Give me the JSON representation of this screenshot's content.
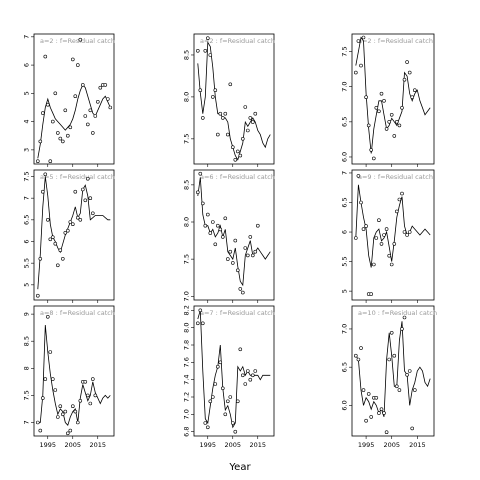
{
  "chart_data": {
    "type": "line",
    "xlabel": "Year",
    "x": [
      1991,
      1992,
      1993,
      1994,
      1995,
      1996,
      1997,
      1998,
      1999,
      2000,
      2001,
      2002,
      2003,
      2004,
      2005,
      2006,
      2007,
      2008,
      2009,
      2010,
      2011,
      2012,
      2013,
      2014,
      2015,
      2016,
      2017,
      2018,
      2019,
      2020
    ],
    "panels": [
      {
        "label": "a=2  :  f=Residual catch",
        "ylim": [
          2.5,
          7.1
        ],
        "yticks": [
          3,
          4,
          5,
          6,
          7
        ],
        "points": [
          2.6,
          3.3,
          4.3,
          6.3,
          4.6,
          2.6,
          4.0,
          5.0,
          3.6,
          3.4,
          3.3,
          4.4,
          3.5,
          3.8,
          6.2,
          4.9,
          6.0,
          6.9,
          5.3,
          4.2,
          3.9,
          4.4,
          3.6,
          4.2,
          4.7,
          5.2,
          5.3,
          5.3,
          4.8,
          4.5
        ],
        "fit": [
          2.7,
          3.2,
          3.9,
          4.5,
          4.8,
          4.5,
          4.3,
          4.1,
          4.0,
          3.9,
          3.8,
          3.7,
          3.8,
          3.9,
          4.1,
          4.4,
          4.8,
          5.1,
          5.3,
          5.2,
          4.9,
          4.6,
          4.3,
          4.2,
          4.4,
          4.6,
          4.8,
          4.9,
          4.7,
          4.5
        ]
      },
      {
        "label": "a=2  :  f=Residual catch",
        "ylim": [
          7.2,
          8.75
        ],
        "yticks": [
          7.5,
          8.0,
          8.5
        ],
        "points": [
          8.55,
          8.08,
          7.75,
          8.55,
          8.7,
          8.5,
          8.0,
          8.08,
          7.55,
          7.8,
          7.75,
          7.8,
          7.55,
          8.15,
          7.4,
          7.25,
          7.35,
          7.3,
          7.5,
          7.88,
          7.6,
          7.75,
          7.7,
          7.8,
          7.6,
          7.5,
          7.4,
          7.3,
          7.5,
          7.6
        ],
        "fit": [
          8.4,
          8.05,
          7.8,
          8.0,
          8.65,
          8.6,
          8.35,
          8.0,
          7.8,
          7.8,
          7.75,
          7.75,
          7.7,
          7.5,
          7.4,
          7.3,
          7.25,
          7.35,
          7.45,
          7.7,
          7.65,
          7.7,
          7.75,
          7.7,
          7.6,
          7.55,
          7.45,
          7.4,
          7.5,
          7.55
        ],
        "lastMarkerIndex": 23
      },
      {
        "label": "a=2  :  f=Residual catch",
        "ylim": [
          5.9,
          7.75
        ],
        "yticks": [
          6.0,
          6.5,
          7.0,
          7.5
        ],
        "points": [
          7.2,
          7.65,
          7.3,
          7.7,
          6.85,
          6.45,
          6.1,
          5.98,
          6.7,
          6.65,
          6.9,
          6.8,
          6.4,
          6.5,
          6.6,
          6.3,
          6.5,
          6.45,
          6.7,
          7.1,
          7.35,
          7.2,
          6.85,
          6.95,
          6.8,
          6.7,
          6.6,
          6.5,
          6.6,
          6.7
        ],
        "fit": [
          7.3,
          7.5,
          7.7,
          7.65,
          6.9,
          6.4,
          6.05,
          6.4,
          6.6,
          6.8,
          6.8,
          6.6,
          6.4,
          6.45,
          6.55,
          6.5,
          6.45,
          6.55,
          6.65,
          7.2,
          7.15,
          6.9,
          6.8,
          6.9,
          6.95,
          6.8,
          6.7,
          6.6,
          6.65,
          6.7
        ],
        "lastMarkerIndex": 23
      },
      {
        "label": "a=5  :  f=Residual catch",
        "ylim": [
          4.65,
          7.65
        ],
        "yticks": [
          5.0,
          5.5,
          6.0,
          6.5,
          7.0,
          7.5
        ],
        "points": [
          4.75,
          5.6,
          7.15,
          7.55,
          6.5,
          6.05,
          6.1,
          5.95,
          5.45,
          5.8,
          5.6,
          6.2,
          6.25,
          6.45,
          6.4,
          7.15,
          6.55,
          6.5,
          7.2,
          6.95,
          7.45,
          7.0,
          6.65,
          6.4,
          6.5,
          6.6,
          6.7,
          6.6,
          6.5,
          6.45
        ],
        "fit": [
          4.9,
          5.7,
          6.8,
          7.5,
          7.05,
          6.4,
          6.1,
          6.0,
          5.85,
          5.75,
          5.95,
          6.15,
          6.3,
          6.45,
          6.6,
          6.8,
          6.55,
          6.65,
          7.2,
          7.3,
          7.05,
          6.5,
          6.55,
          6.6,
          6.6,
          6.6,
          6.6,
          6.55,
          6.5,
          6.5
        ],
        "lastMarkerIndex": 22
      },
      {
        "label": "a=6  :  f=Residual catch",
        "ylim": [
          6.95,
          8.7
        ],
        "yticks": [
          7.0,
          7.5,
          8.0,
          8.5
        ],
        "points": [
          8.4,
          8.65,
          8.25,
          7.95,
          8.1,
          7.85,
          8.0,
          7.7,
          7.95,
          7.9,
          7.8,
          8.05,
          7.5,
          7.6,
          7.45,
          7.75,
          7.35,
          7.1,
          7.05,
          7.65,
          7.55,
          7.8,
          7.55,
          7.6,
          7.95,
          7.7,
          7.6,
          7.5,
          7.55,
          7.6
        ],
        "fit": [
          8.35,
          8.6,
          8.1,
          7.95,
          7.95,
          7.85,
          7.9,
          7.8,
          7.85,
          7.95,
          7.8,
          7.9,
          7.6,
          7.55,
          7.5,
          7.65,
          7.4,
          7.2,
          7.15,
          7.55,
          7.65,
          7.75,
          7.55,
          7.6,
          7.65,
          7.6,
          7.55,
          7.5,
          7.55,
          7.6
        ],
        "lastMarkerIndex": 24
      },
      {
        "label": "a=9  :  f=Residual catch",
        "ylim": [
          4.85,
          7.05
        ],
        "yticks": [
          5.0,
          5.5,
          6.0,
          6.5,
          7.0
        ],
        "points": [
          5.9,
          6.95,
          6.5,
          6.05,
          6.1,
          4.95,
          4.95,
          5.45,
          5.9,
          6.2,
          5.8,
          5.95,
          6.05,
          5.6,
          5.45,
          5.8,
          6.35,
          6.55,
          6.65,
          6.0,
          5.95,
          6.0,
          6.2,
          6.1,
          6.0,
          5.95,
          6.0,
          6.1,
          6.0,
          5.95
        ],
        "fit": [
          5.9,
          6.8,
          6.5,
          6.25,
          6.05,
          5.6,
          5.4,
          5.9,
          6.0,
          6.05,
          5.85,
          5.9,
          6.0,
          5.75,
          5.5,
          5.85,
          6.25,
          6.45,
          6.6,
          6.1,
          5.95,
          6.0,
          6.1,
          6.05,
          6.0,
          5.95,
          6.0,
          6.05,
          6.0,
          5.95
        ],
        "lastMarkerIndex": 21
      },
      {
        "label": "a=8  :  f=Residual catch",
        "ylim": [
          6.75,
          9.15
        ],
        "yticks": [
          7.0,
          7.5,
          8.0,
          8.5,
          9.0
        ],
        "points": [
          7.0,
          6.85,
          7.45,
          7.8,
          8.95,
          8.3,
          7.8,
          7.6,
          7.1,
          7.3,
          7.15,
          7.2,
          6.8,
          6.85,
          7.3,
          7.2,
          7.0,
          7.4,
          7.75,
          7.75,
          7.5,
          7.35,
          7.8,
          7.5,
          7.4,
          7.3,
          7.45,
          7.5,
          7.4,
          7.5
        ],
        "fit": [
          7.0,
          7.0,
          7.5,
          8.8,
          8.3,
          7.9,
          7.6,
          7.35,
          7.15,
          7.25,
          7.2,
          7.0,
          6.95,
          7.1,
          7.2,
          7.25,
          7.0,
          7.45,
          7.7,
          7.55,
          7.4,
          7.5,
          7.75,
          7.55,
          7.45,
          7.35,
          7.45,
          7.5,
          7.45,
          7.5
        ],
        "lastMarkerIndex": 23
      },
      {
        "label": "a=7  :  f=Residual catch",
        "ylim": [
          6.75,
          8.25
        ],
        "yticks": [
          6.8,
          7.0,
          7.2,
          7.4,
          7.6,
          7.8,
          8.0,
          8.2
        ],
        "points": [
          8.05,
          8.2,
          8.05,
          6.9,
          6.85,
          7.15,
          7.2,
          7.35,
          7.55,
          7.6,
          7.3,
          7.0,
          7.15,
          7.2,
          6.9,
          6.8,
          7.15,
          7.75,
          7.45,
          7.35,
          7.5,
          7.4,
          7.45,
          7.5,
          7.4,
          7.35,
          7.45,
          7.5,
          7.4,
          7.45
        ],
        "fit": [
          8.1,
          8.2,
          7.5,
          6.95,
          6.9,
          7.1,
          7.3,
          7.45,
          7.55,
          7.8,
          7.3,
          7.05,
          7.1,
          7.0,
          6.85,
          6.9,
          7.55,
          7.5,
          7.55,
          7.45,
          7.5,
          7.45,
          7.45,
          7.45,
          7.45,
          7.4,
          7.45,
          7.45,
          7.45,
          7.45
        ],
        "lastMarkerIndex": 23
      },
      {
        "label": "a=10  :  f=Residual catch",
        "ylim": [
          5.6,
          7.3
        ],
        "yticks": [
          6.0,
          6.5,
          7.0
        ],
        "points": [
          6.65,
          6.6,
          6.75,
          6.2,
          5.8,
          6.15,
          5.85,
          6.1,
          6.1,
          5.9,
          5.95,
          5.9,
          5.65,
          6.6,
          6.95,
          6.65,
          6.25,
          6.2,
          7.0,
          7.15,
          6.4,
          6.45,
          5.7,
          6.2,
          6.4,
          6.5,
          6.6,
          6.3,
          6.2,
          6.4
        ],
        "fit": [
          6.65,
          6.6,
          6.2,
          6.0,
          6.1,
          6.05,
          5.95,
          6.05,
          6.0,
          5.9,
          5.95,
          5.85,
          6.6,
          6.95,
          6.65,
          6.25,
          6.25,
          6.85,
          7.1,
          6.45,
          6.4,
          6.0,
          6.2,
          6.3,
          6.45,
          6.5,
          6.45,
          6.3,
          6.25,
          6.35
        ],
        "lastMarkerIndex": 23
      }
    ],
    "xticks": [
      1995,
      2005,
      2015
    ],
    "xlim": [
      1989.5,
      2021.5
    ]
  }
}
